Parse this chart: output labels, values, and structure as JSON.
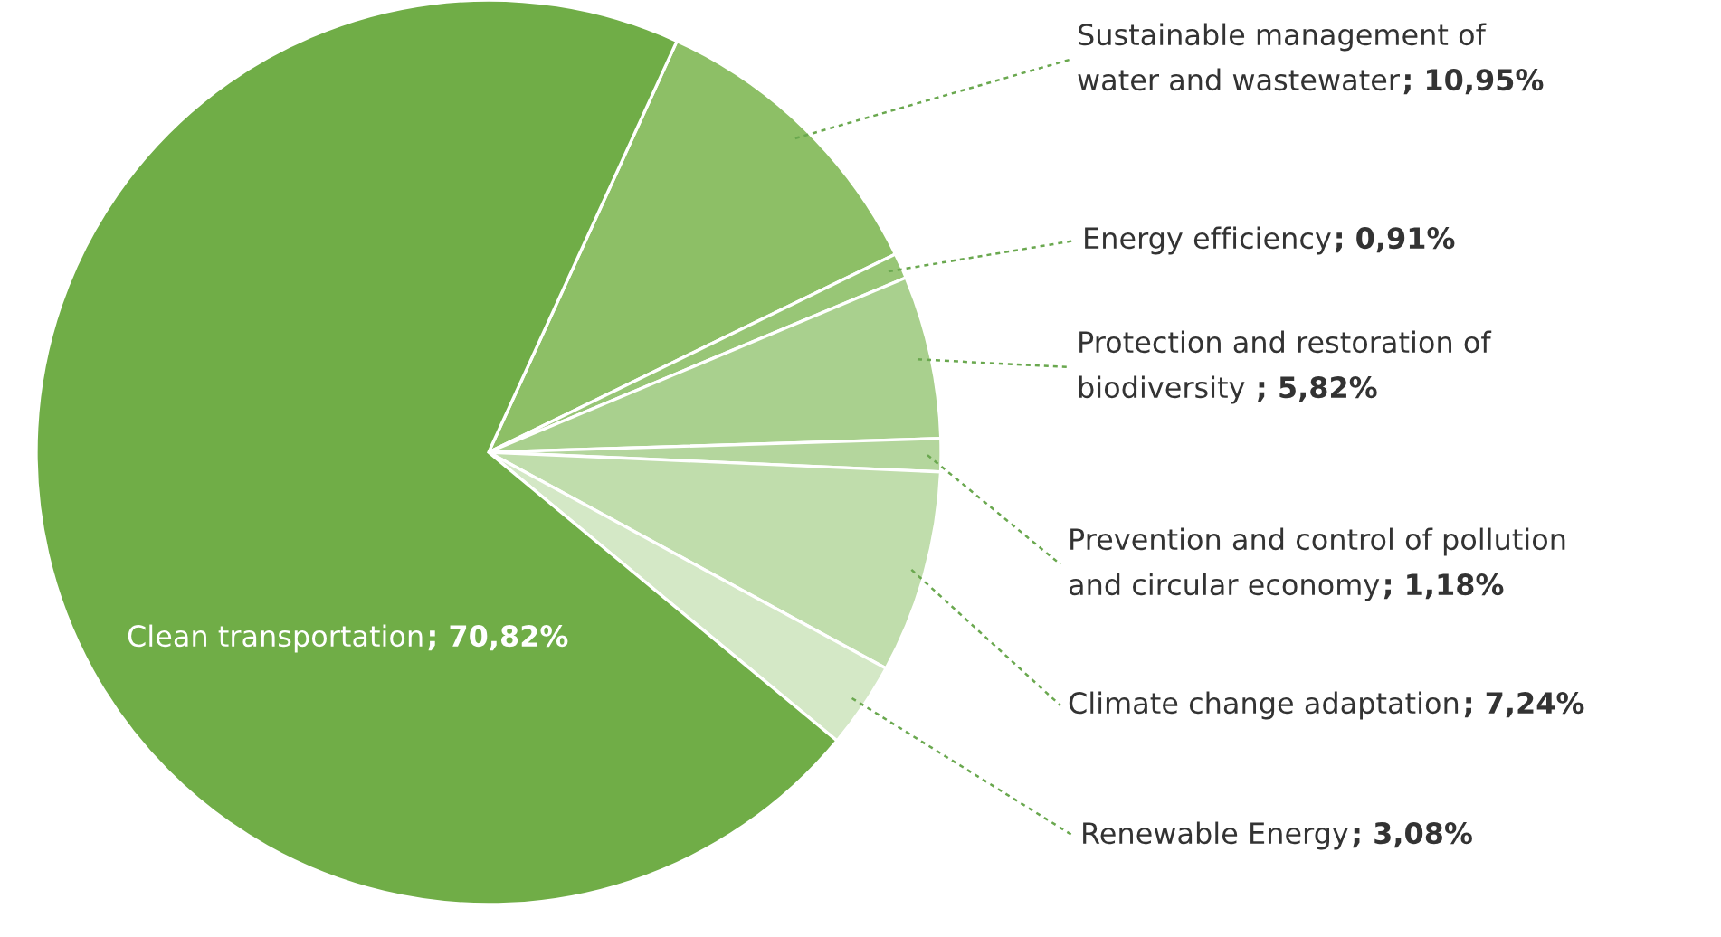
{
  "chart_data": {
    "type": "pie",
    "categories": [
      "Sustainable management of\nwater and wastewater",
      "Energy efficiency",
      "Protection and restoration of\nbiodiversity ",
      "Prevention and control of pollution\nand circular economy",
      "Climate change adaptation",
      "Renewable Energy",
      "Clean transportation"
    ],
    "values": [
      10.95,
      0.91,
      5.82,
      1.18,
      7.24,
      3.08,
      70.82
    ],
    "value_labels": [
      "; 10,95%",
      "; 0,91%",
      "; 5,82%",
      "; 1,18%",
      "; 7,24%",
      "; 3,08%",
      "; 70,82%"
    ],
    "colors": [
      "#8dbf66",
      "#98c676",
      "#a9d08e",
      "#b4d69d",
      "#c0ddac",
      "#d4e8c6",
      "#70ad47"
    ],
    "legend": false
  }
}
